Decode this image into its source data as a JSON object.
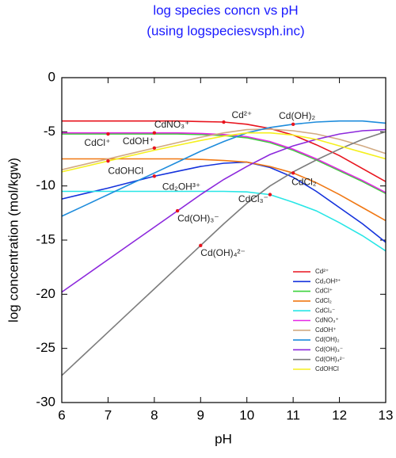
{
  "chart_data": {
    "type": "line",
    "title": "log species concn vs pH",
    "subtitle": "(using logspeciesvsph.inc)",
    "x_label": "pH",
    "y_label": "log concentration (mol/kgw)",
    "x": [
      6,
      6.5,
      7,
      7.5,
      8,
      8.5,
      9,
      9.5,
      10,
      10.5,
      11,
      11.5,
      12,
      12.5,
      13
    ],
    "xlim": [
      6,
      13
    ],
    "xticks": [
      6,
      7,
      8,
      9,
      10,
      11,
      12,
      13
    ],
    "ylim": [
      -30,
      0
    ],
    "yticks": [
      0,
      -5,
      -10,
      -15,
      -20,
      -25,
      -30
    ],
    "legend": "lower right",
    "series": [
      {
        "name": "Cd²⁺",
        "color": "#e8141e",
        "values": [
          -4,
          -4,
          -4,
          -4,
          -4,
          -4,
          -4.05,
          -4.1,
          -4.3,
          -4.7,
          -5.3,
          -6.2,
          -7.2,
          -8.4,
          -9.6
        ]
      },
      {
        "name": "Cd₂OH³⁺",
        "color": "#1432dc",
        "values": [
          -11.2,
          -10.7,
          -10.2,
          -9.65,
          -9.1,
          -8.65,
          -8.2,
          -7.9,
          -7.8,
          -8.3,
          -9.2,
          -10.5,
          -12,
          -13.5,
          -15.2
        ]
      },
      {
        "name": "CdCl⁺",
        "color": "#3cd23c",
        "values": [
          -5.2,
          -5.2,
          -5.2,
          -5.2,
          -5.2,
          -5.2,
          -5.25,
          -5.35,
          -5.55,
          -6,
          -6.7,
          -7.6,
          -8.6,
          -9.6,
          -10.7
        ]
      },
      {
        "name": "CdCl₂",
        "color": "#f07814",
        "values": [
          -7.5,
          -7.5,
          -7.5,
          -7.5,
          -7.5,
          -7.5,
          -7.55,
          -7.65,
          -7.8,
          -8.2,
          -8.8,
          -9.7,
          -10.8,
          -12,
          -13.2
        ]
      },
      {
        "name": "CdCl₃⁻",
        "color": "#28e6e6",
        "values": [
          -10.5,
          -10.5,
          -10.5,
          -10.5,
          -10.5,
          -10.5,
          -10.5,
          -10.5,
          -10.55,
          -10.8,
          -11.5,
          -12.3,
          -13.4,
          -14.6,
          -16
        ]
      },
      {
        "name": "CdNO₃⁺",
        "color": "#e628e6",
        "values": [
          -5.1,
          -5.1,
          -5.1,
          -5.1,
          -5.1,
          -5.1,
          -5.15,
          -5.25,
          -5.45,
          -5.9,
          -6.6,
          -7.5,
          -8.5,
          -9.5,
          -10.6
        ]
      },
      {
        "name": "CdOH⁺",
        "color": "#d2aa82",
        "values": [
          -8.5,
          -8,
          -7.5,
          -7,
          -6.5,
          -6,
          -5.5,
          -5.1,
          -4.8,
          -4.75,
          -4.9,
          -5.2,
          -5.7,
          -6.3,
          -7
        ]
      },
      {
        "name": "Cd(OH)₂",
        "color": "#1e8cdc",
        "values": [
          -12.8,
          -11.8,
          -10.8,
          -9.8,
          -8.8,
          -7.8,
          -6.8,
          -5.9,
          -5.1,
          -4.6,
          -4.3,
          -4.1,
          -4,
          -4,
          -4.2
        ]
      },
      {
        "name": "Cd(OH)₃⁻",
        "color": "#8c28dc",
        "values": [
          -19.8,
          -18.3,
          -16.8,
          -15.3,
          -13.8,
          -12.3,
          -10.8,
          -9.4,
          -8.2,
          -7.1,
          -6.3,
          -5.7,
          -5.2,
          -4.9,
          -4.8
        ]
      },
      {
        "name": "Cd(OH)₄²⁻",
        "color": "#7d7d7d",
        "values": [
          -27.5,
          -25.5,
          -23.5,
          -21.5,
          -19.5,
          -17.5,
          -15.5,
          -13.5,
          -11.6,
          -10,
          -8.7,
          -7.6,
          -6.6,
          -5.7,
          -5
        ]
      },
      {
        "name": "CdOHCl",
        "color": "#f5f01e",
        "values": [
          -8.7,
          -8.2,
          -7.7,
          -7.2,
          -6.7,
          -6.25,
          -5.8,
          -5.4,
          -5.1,
          -5.1,
          -5.3,
          -5.7,
          -6.3,
          -6.9,
          -7.5
        ]
      }
    ]
  }
}
